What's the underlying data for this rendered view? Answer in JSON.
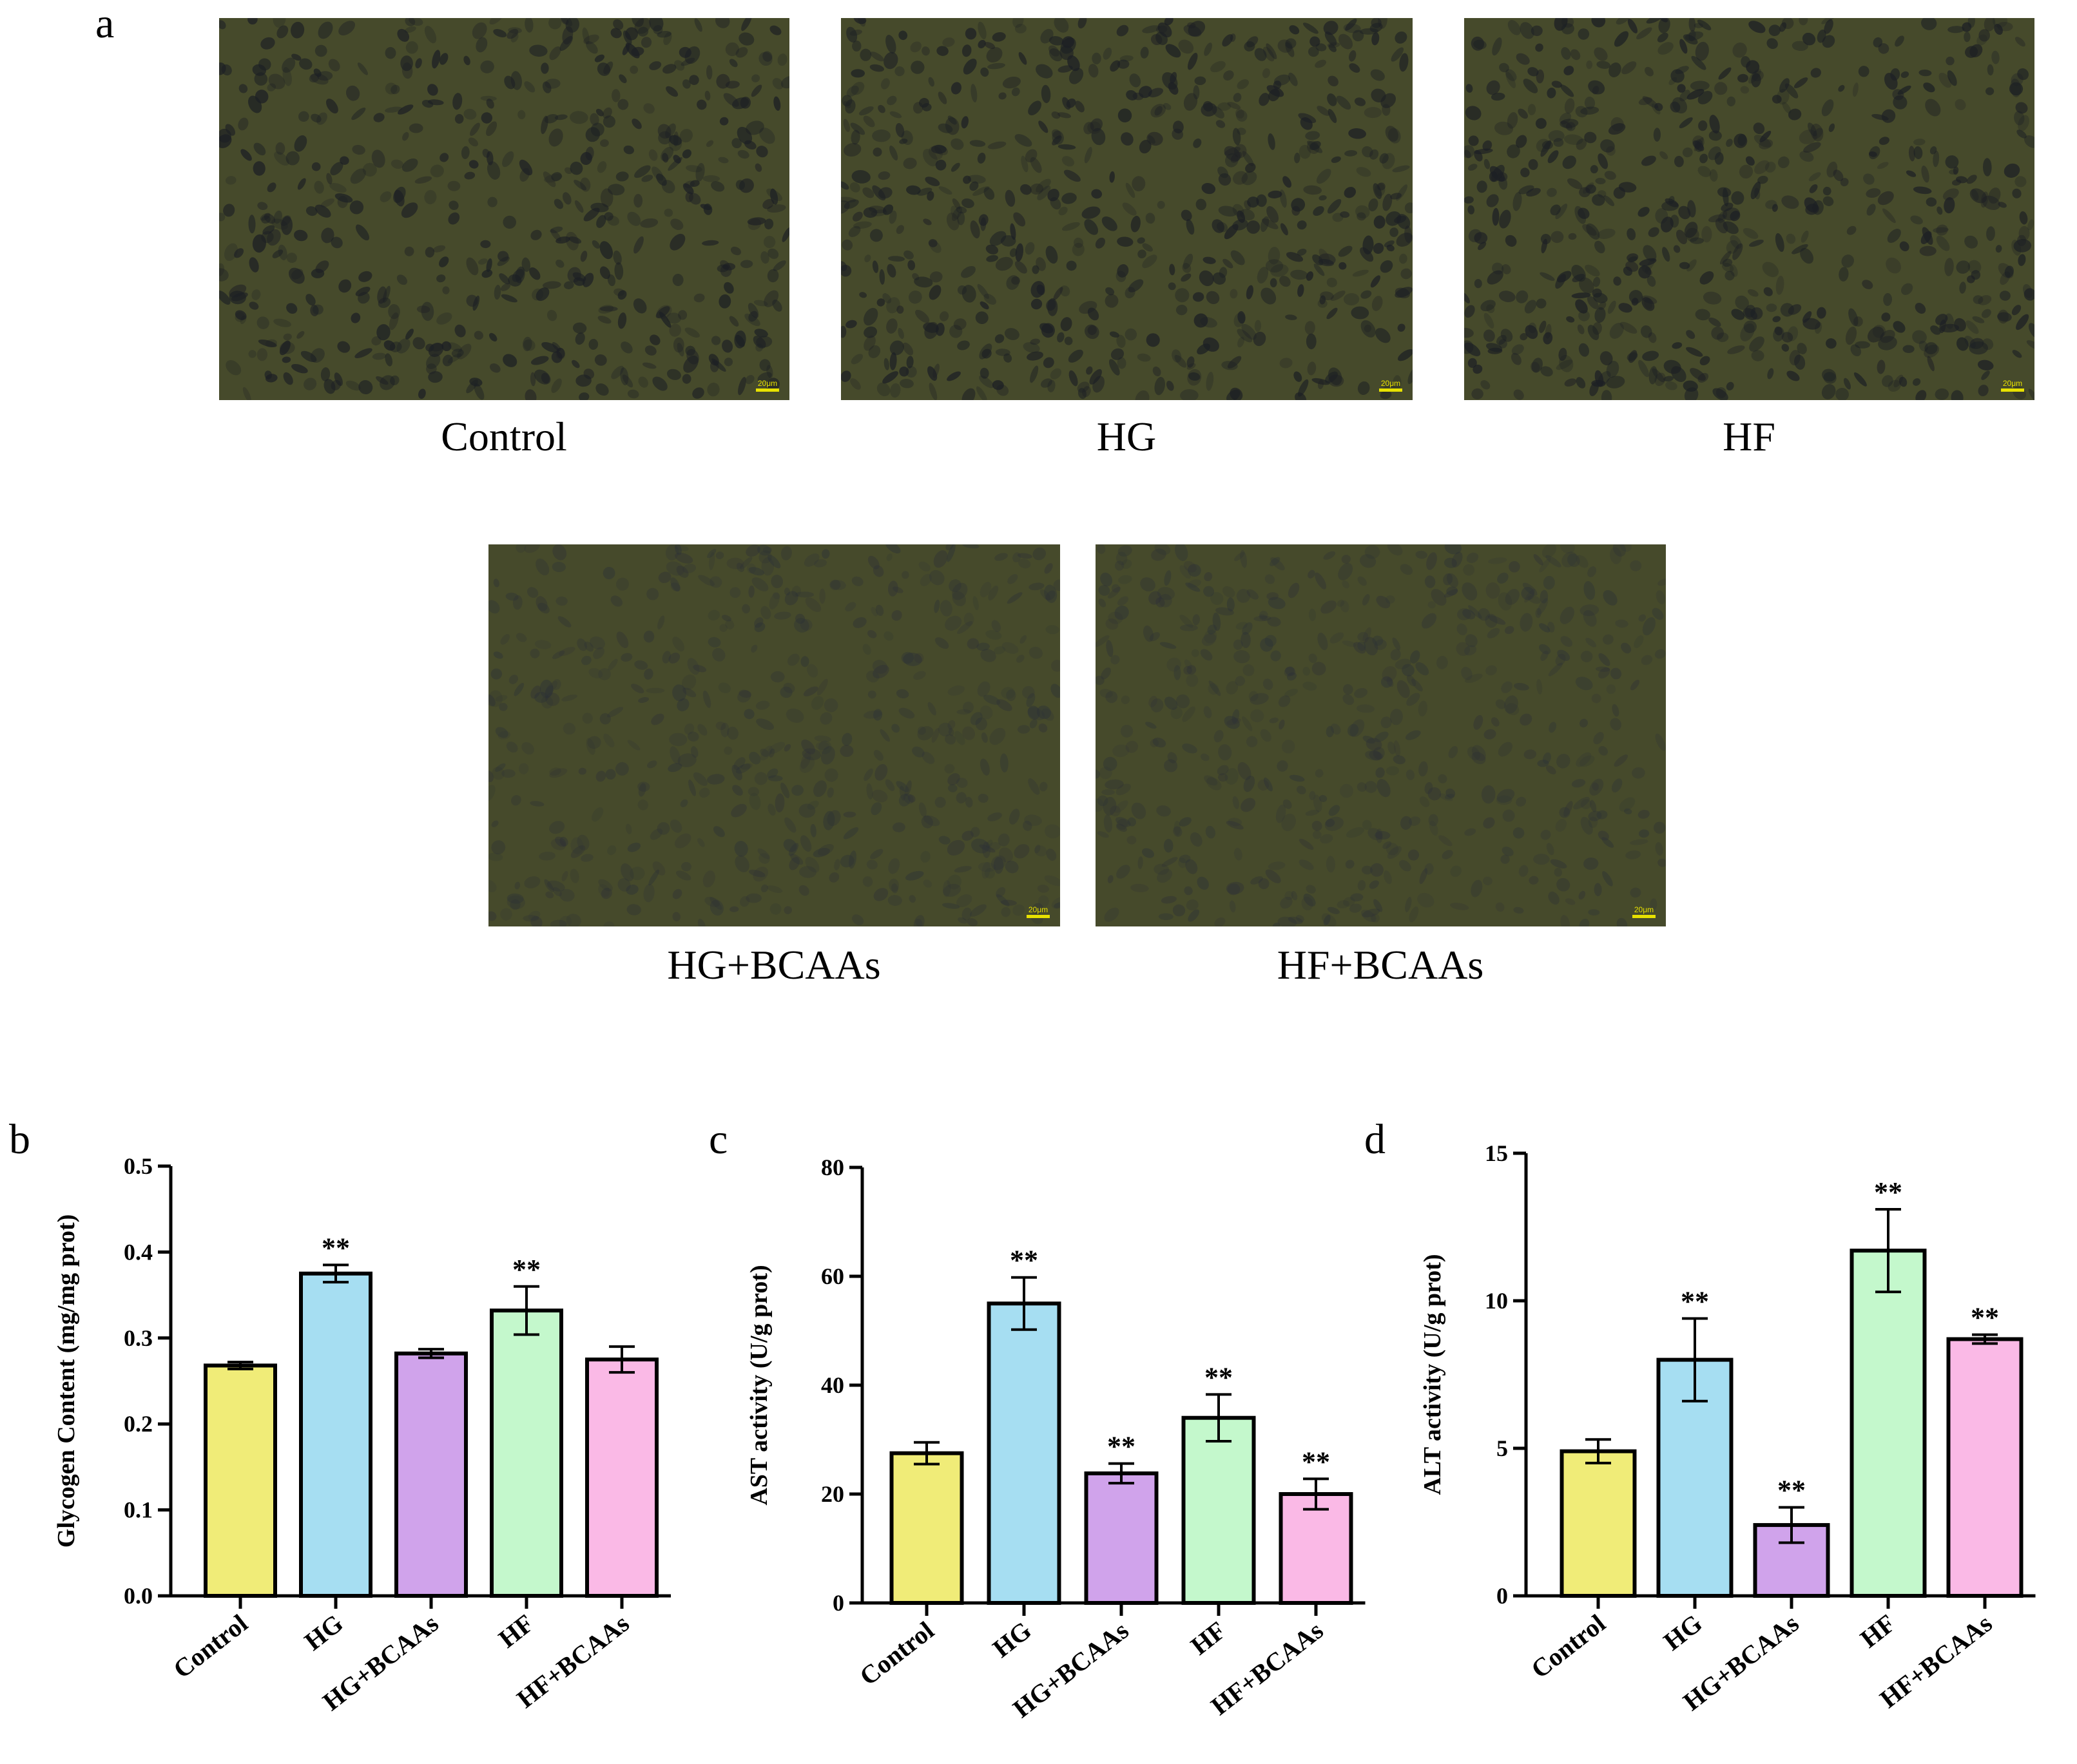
{
  "panel_a": {
    "letter": "a",
    "scale_bar_text": "20μm",
    "images": [
      {
        "label": "Control",
        "cell_density": 0.9,
        "cell_tone": "dark"
      },
      {
        "label": "HG",
        "cell_density": 1.0,
        "cell_tone": "dark"
      },
      {
        "label": "HF",
        "cell_density": 1.0,
        "cell_tone": "dark"
      },
      {
        "label": "HG+BCAAs",
        "cell_density": 0.85,
        "cell_tone": "faint"
      },
      {
        "label": "HF+BCAAs",
        "cell_density": 0.85,
        "cell_tone": "faint"
      }
    ],
    "background_color": "#464a2b"
  },
  "colors": {
    "Control": "#f0ec78",
    "HG": "#a6def2",
    "HG+BCAAs": "#d0a3eb",
    "HF": "#c4f8cc",
    "HF+BCAAs": "#fab9e6"
  },
  "chart_data": [
    {
      "letter": "b",
      "type": "bar",
      "categories": [
        "Control",
        "HG",
        "HG+BCAAs",
        "HF",
        "HF+BCAAs"
      ],
      "values": [
        0.268,
        0.375,
        0.282,
        0.332,
        0.275
      ],
      "errors": [
        0.004,
        0.01,
        0.005,
        0.028,
        0.015
      ],
      "significance": [
        "",
        "**",
        "",
        "**",
        ""
      ],
      "ylabel": "Glycogen Content  (mg/mg prot)",
      "ylim": [
        0,
        0.5
      ],
      "yticks": [
        "0.0",
        "0.1",
        "0.2",
        "0.3",
        "0.4",
        "0.5"
      ],
      "ytick_values": [
        0,
        0.1,
        0.2,
        0.3,
        0.4,
        0.5
      ]
    },
    {
      "letter": "c",
      "type": "bar",
      "categories": [
        "Control",
        "HG",
        "HG+BCAAs",
        "HF",
        "HF+BCAAs"
      ],
      "values": [
        27.5,
        55,
        23.8,
        34,
        20
      ],
      "errors": [
        2,
        4.8,
        1.8,
        4.3,
        2.8
      ],
      "significance": [
        "",
        "**",
        "**",
        "**",
        "**"
      ],
      "ylabel": "AST activity (U/g prot)",
      "ylim": [
        0,
        80
      ],
      "yticks": [
        "0",
        "20",
        "40",
        "60",
        "80"
      ],
      "ytick_values": [
        0,
        20,
        40,
        60,
        80
      ]
    },
    {
      "letter": "d",
      "type": "bar",
      "categories": [
        "Control",
        "HG",
        "HG+BCAAs",
        "HF",
        "HF+BCAAs"
      ],
      "values": [
        4.9,
        8,
        2.4,
        11.7,
        8.7
      ],
      "errors": [
        0.4,
        1.4,
        0.6,
        1.4,
        0.15
      ],
      "significance": [
        "",
        "**",
        "**",
        "**",
        "**"
      ],
      "ylabel": "ALT activity (U/g prot)",
      "ylim": [
        0,
        15
      ],
      "yticks": [
        "0",
        "5",
        "10",
        "15"
      ],
      "ytick_values": [
        0,
        5,
        10,
        15
      ]
    }
  ]
}
